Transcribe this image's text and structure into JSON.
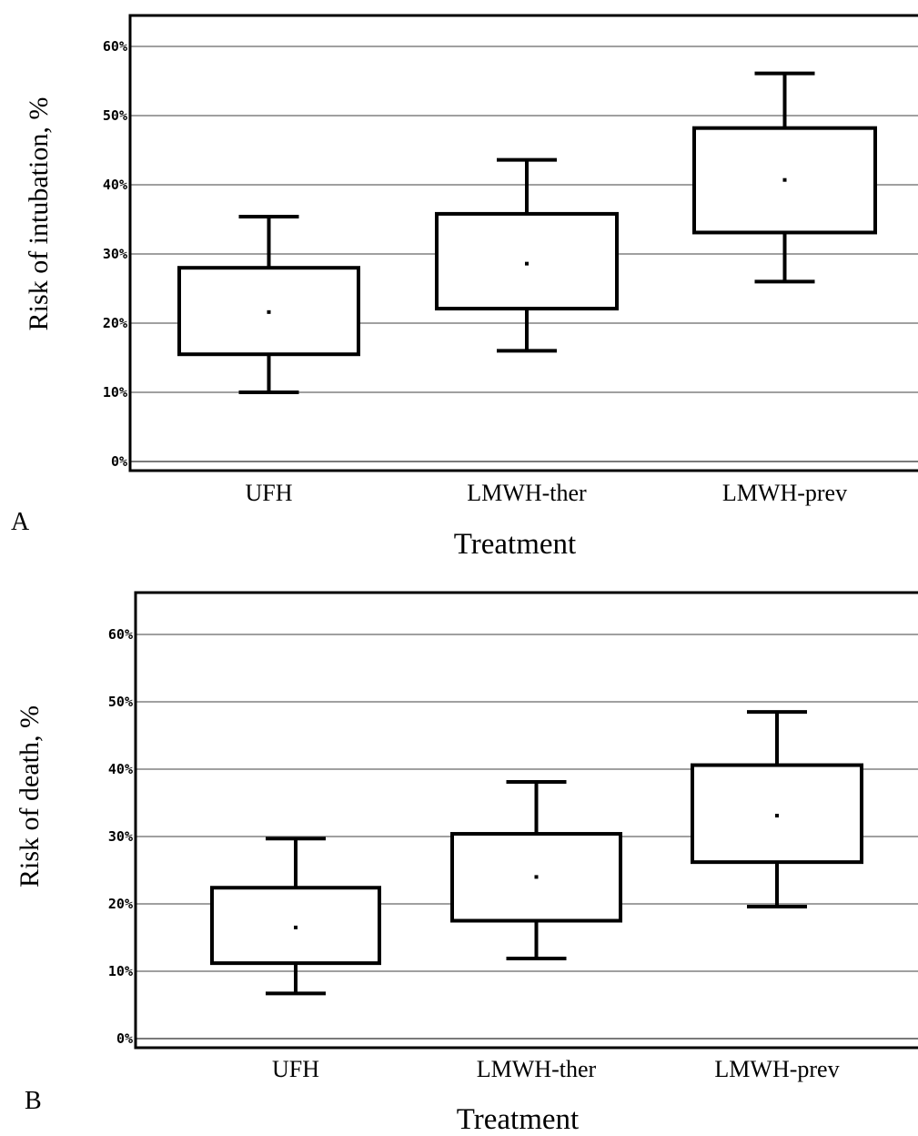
{
  "chart_data": [
    {
      "type": "box",
      "panel_label": "A",
      "xlabel": "Treatment",
      "ylabel": "Risk of intubation, %",
      "ylim": [
        0,
        60
      ],
      "yticks": [
        "0%",
        "10%",
        "20%",
        "30%",
        "40%",
        "50%",
        "60%"
      ],
      "grid": true,
      "categories": [
        "UFH",
        "LMWH-ther",
        "LMWH-prev"
      ],
      "boxes": [
        {
          "category": "UFH",
          "whisker_low": 10.0,
          "q1": 15.5,
          "center": 21.6,
          "q3": 28.0,
          "whisker_high": 35.4
        },
        {
          "category": "LMWH-ther",
          "whisker_low": 16.0,
          "q1": 22.1,
          "center": 28.6,
          "q3": 35.8,
          "whisker_high": 43.6
        },
        {
          "category": "LMWH-prev",
          "whisker_low": 26.0,
          "q1": 33.1,
          "center": 40.7,
          "q3": 48.2,
          "whisker_high": 56.1
        }
      ]
    },
    {
      "type": "box",
      "panel_label": "B",
      "xlabel": "Treatment",
      "ylabel": "Risk of death, %",
      "ylim": [
        0,
        60
      ],
      "yticks": [
        "0%",
        "10%",
        "20%",
        "30%",
        "40%",
        "50%",
        "60%"
      ],
      "grid": true,
      "categories": [
        "UFH",
        "LMWH-ther",
        "LMWH-prev"
      ],
      "boxes": [
        {
          "category": "UFH",
          "whisker_low": 6.7,
          "q1": 11.2,
          "center": 16.5,
          "q3": 22.4,
          "whisker_high": 29.7
        },
        {
          "category": "LMWH-ther",
          "whisker_low": 11.9,
          "q1": 17.5,
          "center": 24.0,
          "q3": 30.4,
          "whisker_high": 38.1
        },
        {
          "category": "LMWH-prev",
          "whisker_low": 19.6,
          "q1": 26.2,
          "center": 33.1,
          "q3": 40.6,
          "whisker_high": 48.5
        }
      ]
    }
  ]
}
